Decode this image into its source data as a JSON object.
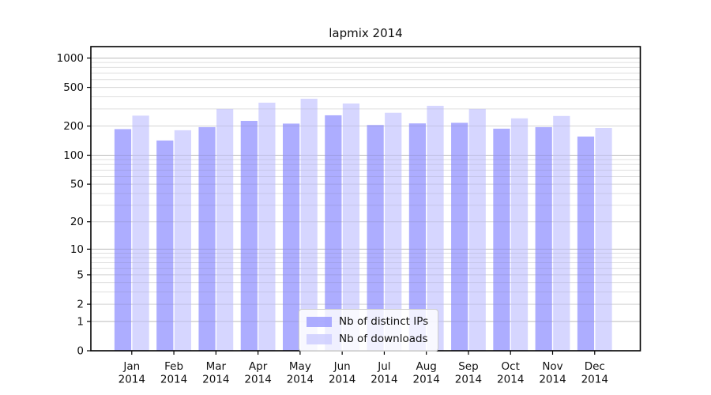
{
  "title": "lapmix 2014",
  "chart_data": {
    "type": "bar",
    "title": "lapmix 2014",
    "categories": [
      "Jan",
      "Feb",
      "Mar",
      "Apr",
      "May",
      "Jun",
      "Jul",
      "Aug",
      "Sep",
      "Oct",
      "Nov",
      "Dec"
    ],
    "year_label": "2014",
    "series": [
      {
        "name": "Nb of distinct IPs",
        "color": "#9999ff",
        "values": [
          186,
          142,
          195,
          226,
          212,
          258,
          205,
          213,
          216,
          188,
          195,
          156
        ]
      },
      {
        "name": "Nb of downloads",
        "color": "#ccccff",
        "values": [
          256,
          181,
          300,
          348,
          382,
          341,
          274,
          323,
          300,
          240,
          254,
          191
        ]
      }
    ],
    "yscale": "log1p",
    "yticks": [
      0,
      1,
      2,
      5,
      10,
      20,
      50,
      100,
      200,
      500,
      1000
    ],
    "ylim": [
      0,
      1310
    ],
    "grid": true,
    "legend_position": "lower center",
    "colors": {
      "axis": "#000000",
      "grid_major": "#c9c9c9",
      "grid_mid": "#e3e3e3",
      "grid_minor": "#f2f2f2",
      "bar_alpha": "0.8"
    }
  }
}
